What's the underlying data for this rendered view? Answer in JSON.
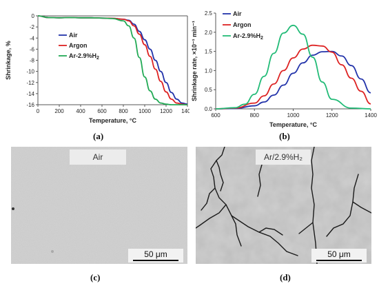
{
  "chart_data": [
    {
      "type": "line",
      "panel": "(a)",
      "xlabel": "Temperature, °C",
      "ylabel": "Shrinkage, %",
      "xlim": [
        0,
        1400
      ],
      "ylim": [
        -16,
        0
      ],
      "x_ticks": [
        "0",
        "200",
        "400",
        "600",
        "800",
        "1000",
        "1200",
        "1400"
      ],
      "y_ticks": [
        "0",
        "-2",
        "-4",
        "-6",
        "-8",
        "-10",
        "-12",
        "-14",
        "-16"
      ],
      "legend_position": "top-left",
      "grid": false,
      "series": [
        {
          "name": "Air",
          "color": "#2233aa",
          "x": [
            0,
            100,
            200,
            300,
            400,
            500,
            600,
            700,
            800,
            850,
            900,
            950,
            1000,
            1050,
            1100,
            1150,
            1200,
            1250,
            1300,
            1350,
            1400
          ],
          "y": [
            0,
            -0.3,
            -0.35,
            -0.3,
            -0.35,
            -0.35,
            -0.4,
            -0.45,
            -0.6,
            -0.8,
            -1.5,
            -2.8,
            -4.3,
            -6.0,
            -8.0,
            -10.0,
            -12.0,
            -13.8,
            -15.0,
            -15.7,
            -15.9
          ]
        },
        {
          "name": "Argon",
          "color": "#dd2222",
          "x": [
            0,
            100,
            200,
            300,
            400,
            500,
            600,
            700,
            800,
            850,
            900,
            950,
            1000,
            1050,
            1100,
            1150,
            1200,
            1250,
            1300,
            1350,
            1400
          ],
          "y": [
            0,
            -0.3,
            -0.35,
            -0.3,
            -0.35,
            -0.35,
            -0.4,
            -0.45,
            -0.6,
            -0.9,
            -1.8,
            -3.3,
            -5.2,
            -7.3,
            -9.6,
            -11.8,
            -13.7,
            -15.0,
            -15.7,
            -15.9,
            -16.0
          ]
        },
        {
          "name": "Ar-2.9%H₂",
          "color": "#22aa55",
          "x": [
            0,
            100,
            200,
            300,
            400,
            500,
            600,
            700,
            800,
            850,
            900,
            950,
            1000,
            1050,
            1100,
            1150,
            1200,
            1250,
            1300,
            1350,
            1400
          ],
          "y": [
            0,
            -0.3,
            -0.35,
            -0.3,
            -0.35,
            -0.35,
            -0.4,
            -0.5,
            -0.9,
            -1.8,
            -4.0,
            -7.5,
            -11.0,
            -13.5,
            -15.0,
            -15.7,
            -15.9,
            -16.0,
            -16.0,
            -16.0,
            -16.0
          ]
        }
      ]
    },
    {
      "type": "line",
      "panel": "(b)",
      "xlabel": "Temperature, °C",
      "ylabel": "Shrinkage rate, ×10⁻¹ min⁻¹",
      "xlim": [
        600,
        1400
      ],
      "ylim": [
        0,
        2.5
      ],
      "x_ticks": [
        "600",
        "800",
        "1000",
        "1200",
        "1400"
      ],
      "y_ticks": [
        "0.0",
        "0.5",
        "1.0",
        "1.5",
        "2.0",
        "2.5"
      ],
      "legend_position": "top-left",
      "grid": false,
      "series": [
        {
          "name": "Air",
          "color": "#2233aa",
          "x": [
            600,
            700,
            800,
            850,
            900,
            950,
            1000,
            1050,
            1100,
            1150,
            1200,
            1250,
            1300,
            1350,
            1400
          ],
          "y": [
            0,
            0.01,
            0.08,
            0.18,
            0.36,
            0.62,
            0.93,
            1.2,
            1.4,
            1.49,
            1.5,
            1.38,
            1.13,
            0.78,
            0.42
          ]
        },
        {
          "name": "Argon",
          "color": "#dd2222",
          "x": [
            600,
            700,
            800,
            850,
            900,
            950,
            1000,
            1050,
            1100,
            1150,
            1200,
            1250,
            1300,
            1350,
            1400
          ],
          "y": [
            0,
            0.02,
            0.15,
            0.34,
            0.65,
            1.0,
            1.33,
            1.56,
            1.66,
            1.64,
            1.48,
            1.15,
            0.8,
            0.46,
            0.13
          ]
        },
        {
          "name": "Ar-2.9%H₂",
          "color": "#22bb77",
          "x": [
            600,
            700,
            750,
            800,
            850,
            900,
            950,
            1000,
            1050,
            1100,
            1150,
            1200,
            1300,
            1400
          ],
          "y": [
            0,
            0.03,
            0.12,
            0.38,
            0.85,
            1.45,
            1.98,
            2.18,
            1.95,
            1.35,
            0.7,
            0.25,
            0.02,
            0
          ]
        }
      ]
    }
  ],
  "micrographs": [
    {
      "label": "Air",
      "scale": "50 μm",
      "caption": "(c)",
      "texture": "fine-smooth"
    },
    {
      "label": "Ar/2.9%H₂",
      "scale": "50 μm",
      "caption": "(d)",
      "texture": "grains-with-cracks"
    }
  ],
  "captions": {
    "a": "(a)",
    "b": "(b)",
    "c": "(c)",
    "d": "(d)"
  },
  "colors": {
    "axis": "#555555",
    "micro_bg_c": "#c9c9c9",
    "micro_bg_d": "#bdbdbd",
    "crack": "#1a1a1a"
  }
}
